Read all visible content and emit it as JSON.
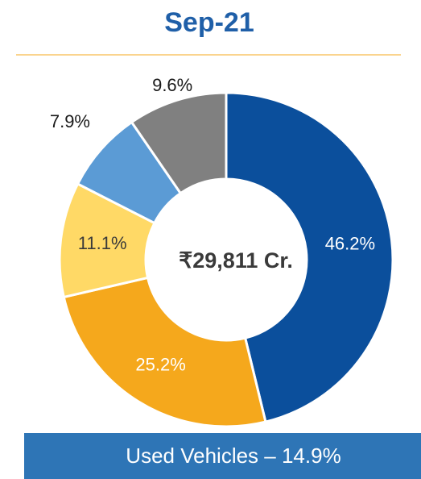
{
  "chart_data": {
    "type": "donut",
    "title": "Sep-21",
    "center_label": "₹29,811 Cr.",
    "footer": "Used Vehicles – 14.9%",
    "values": [
      46.2,
      25.2,
      11.1,
      7.9,
      9.6
    ],
    "value_labels": [
      "46.2%",
      "25.2%",
      "11.1%",
      "7.9%",
      "9.6%"
    ],
    "colors": [
      "#0b4f9c",
      "#f5a81c",
      "#ffd966",
      "#5b9bd5",
      "#808080"
    ]
  }
}
